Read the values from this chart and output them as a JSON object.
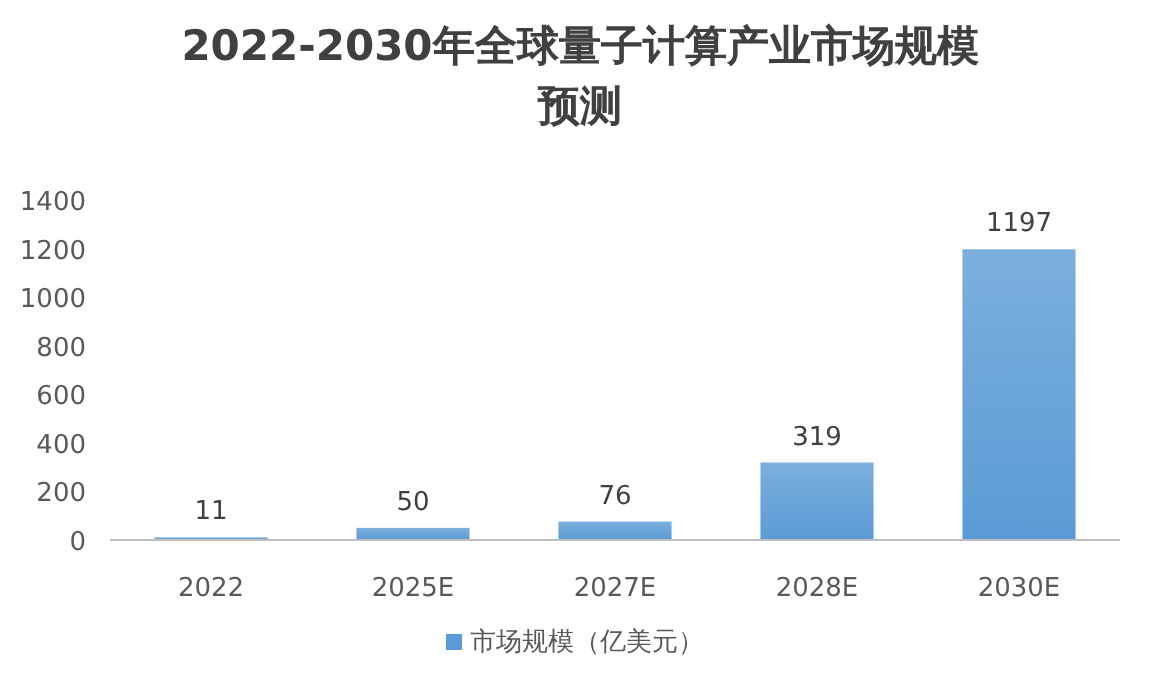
{
  "chart_data": {
    "type": "bar",
    "title": "2022-2030年全球量子计算产业市场规模预测",
    "categories": [
      "2022",
      "2025E",
      "2027E",
      "2028E",
      "2030E"
    ],
    "series": [
      {
        "name": "市场规模（亿美元）",
        "color": "#5b9bd5",
        "values": [
          11,
          50,
          76,
          319,
          1197
        ]
      }
    ],
    "ylim": [
      0,
      1400
    ],
    "yticks": [
      0,
      200,
      400,
      600,
      800,
      1000,
      1200,
      1400
    ],
    "data_labels": true,
    "grid": false,
    "legend": "bottom"
  }
}
